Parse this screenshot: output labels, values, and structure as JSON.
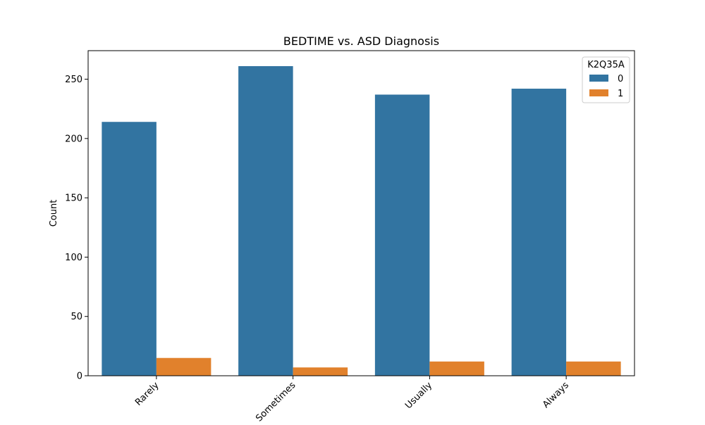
{
  "chart_data": {
    "type": "bar",
    "title": "BEDTIME vs. ASD Diagnosis",
    "xlabel": "",
    "ylabel": "Count",
    "categories": [
      "Rarely",
      "Sometimes",
      "Usually",
      "Always"
    ],
    "series": [
      {
        "name": "0",
        "values": [
          214,
          261,
          237,
          242
        ],
        "color": "#3274a1"
      },
      {
        "name": "1",
        "values": [
          15,
          7,
          12,
          12
        ],
        "color": "#e1812c"
      }
    ],
    "ylim": [
      0,
      274.05
    ],
    "yticks": [
      0,
      50,
      100,
      150,
      200,
      250
    ],
    "legend": {
      "title": "K2Q35A",
      "placement": "top-right"
    },
    "grid": false
  }
}
